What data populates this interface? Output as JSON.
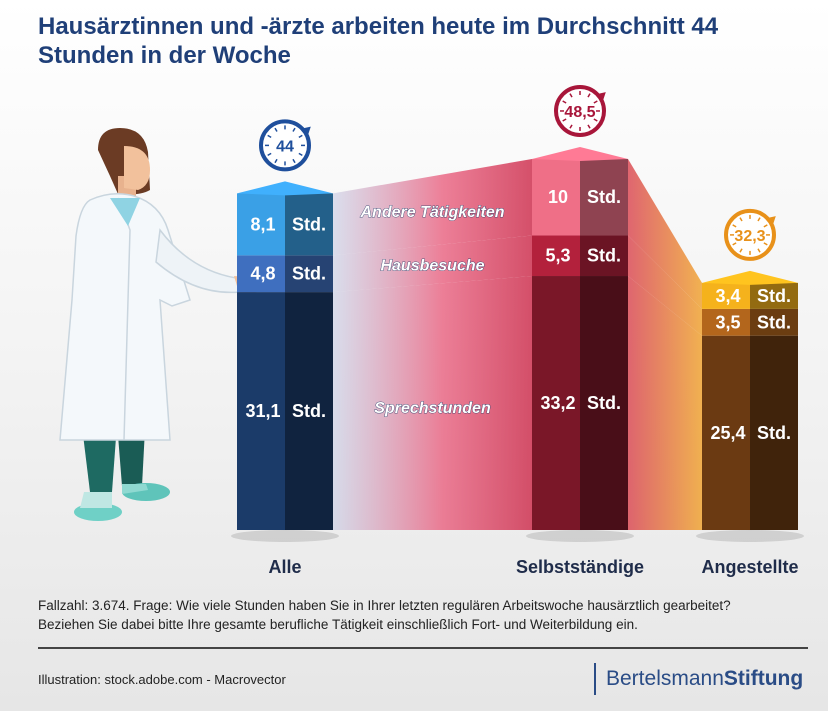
{
  "title": "Hausärztinnen und -ärzte arbeiten heute im Durchschnitt 44 Stunden in der Woche",
  "footnote": {
    "line1": "Fallzahl: 3.674. Frage:  Wie viele Stunden haben Sie in Ihrer letzten regulären Arbeitswoche hausärztlich gearbeitet?",
    "line2": "Beziehen Sie dabei bitte Ihre gesamte berufliche Tätigkeit einschließlich Fort- und Weiterbildung ein."
  },
  "credit": "Illustration: stock.adobe.com - Macrovector",
  "brand": {
    "part1": "Bertelsmann",
    "part2": "Stiftung"
  },
  "icons": [
    "doctor-illustration",
    "clock-icon"
  ],
  "chart_data": {
    "type": "bar",
    "stacked": true,
    "unit": "Std.",
    "categories": [
      "Alle",
      "Selbstständige",
      "Angestellte"
    ],
    "totals": [
      "44",
      "48,5",
      "32,3"
    ],
    "series": [
      {
        "name": "Sprechstunden",
        "values": [
          31.1,
          33.2,
          25.4
        ],
        "labels": [
          "31,1",
          "33,2",
          "25,4"
        ]
      },
      {
        "name": "Hausbesuche",
        "values": [
          4.8,
          5.3,
          3.5
        ],
        "labels": [
          "4,8",
          "5,3",
          "3,5"
        ]
      },
      {
        "name": "Andere Tätigkeiten",
        "values": [
          8.1,
          10,
          3.4
        ],
        "labels": [
          "8,1",
          "10",
          "3,4"
        ]
      }
    ],
    "colors": {
      "Alle": [
        "#1b3b69",
        "#3f6fbf",
        "#3aa0e6"
      ],
      "Selbstständige": [
        "#7a1728",
        "#b3213c",
        "#ef6f87"
      ],
      "Angestellte": [
        "#6b3a12",
        "#b3661c",
        "#f5b21c"
      ]
    },
    "clock_colors": [
      "#1f4f9c",
      "#a8163a",
      "#e8911a"
    ]
  }
}
